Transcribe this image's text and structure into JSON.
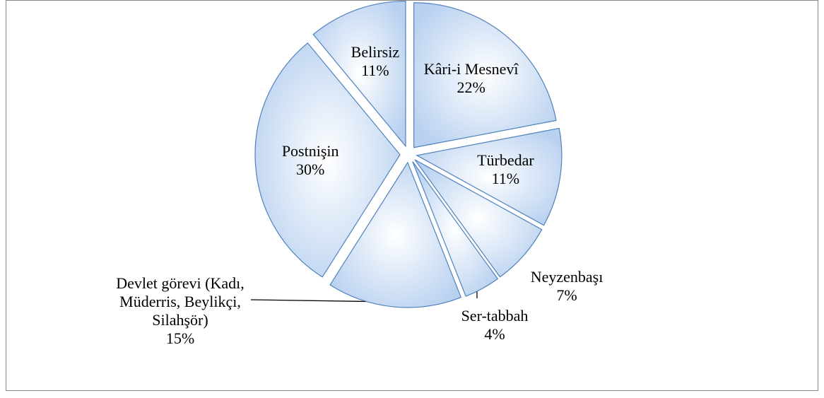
{
  "chart_data": {
    "type": "pie",
    "categories": [
      "Kâri-i Mesnevî",
      "Türbedar",
      "Neyzenbaşı",
      "Ser-tabbah",
      "Devlet görevi (Kadı, Müderris, Beylikçi, Silahşör)",
      "Postnişin",
      "Belirsiz"
    ],
    "values": [
      22,
      11,
      7,
      4,
      15,
      30,
      11
    ],
    "value_labels": [
      "22%",
      "11%",
      "7%",
      "4%",
      "15%",
      "30%",
      "11%"
    ],
    "color": "#c6d9f1"
  }
}
